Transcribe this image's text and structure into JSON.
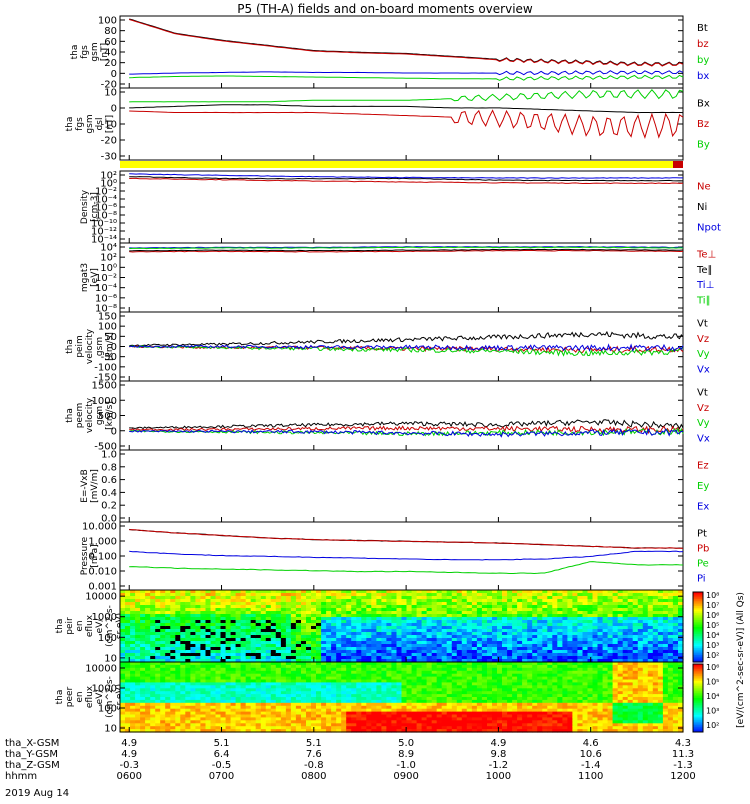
{
  "title": "P5 (TH-A) fields and on-board moments overview",
  "date_label": "2019 Aug 14",
  "colors": {
    "black": "#000000",
    "red": "#c80000",
    "green": "#00d000",
    "blue": "#0000e0",
    "lime": "#00e000",
    "yellow": "#ffff00"
  },
  "ephemeris": {
    "rows": [
      {
        "label": "tha_X-GSM",
        "values": [
          "4.9",
          "5.1",
          "5.1",
          "5.0",
          "4.9",
          "4.6",
          "4.3"
        ]
      },
      {
        "label": "tha_Y-GSM",
        "values": [
          "4.9",
          "6.4",
          "7.6",
          "8.9",
          "9.8",
          "10.6",
          "11.3"
        ]
      },
      {
        "label": "tha_Z-GSM",
        "values": [
          "-0.3",
          "-0.5",
          "-0.8",
          "-1.0",
          "-1.2",
          "-1.4",
          "-1.3"
        ]
      },
      {
        "label": "hhmm",
        "values": [
          "0600",
          "0700",
          "0800",
          "0900",
          "1000",
          "1100",
          "1200"
        ]
      }
    ]
  },
  "colorbar": {
    "label": "[eV/(cm^2-sec-sr-eV)] (All Qs)",
    "upper_ticks": [
      "10⁸",
      "10⁷",
      "10⁶",
      "10⁵",
      "10⁴",
      "10³",
      "10²"
    ],
    "lower_ticks": [
      "10⁶",
      "10⁵",
      "10⁴",
      "10³",
      "10²"
    ]
  },
  "chart_data": [
    {
      "type": "line",
      "panel": "fgs_gsm",
      "ylabel": [
        "tha",
        "fgs",
        "gsm",
        "[nT]"
      ],
      "yticks": [
        "100",
        "80",
        "60",
        "40",
        "20",
        "0",
        "-20"
      ],
      "ylim": [
        -20,
        105
      ],
      "legend": [
        {
          "name": "Bt",
          "color": "#000000"
        },
        {
          "name": "bz",
          "color": "#c80000"
        },
        {
          "name": "by",
          "color": "#00d000"
        },
        {
          "name": "bx",
          "color": "#0000e0"
        }
      ],
      "x": [
        6.0,
        6.5,
        7.0,
        7.5,
        8.0,
        8.5,
        9.0,
        9.5,
        10.0,
        10.5,
        11.0,
        11.5,
        12.0
      ],
      "series": [
        {
          "name": "Bt",
          "values": [
            100,
            75,
            63,
            54,
            45,
            42,
            40,
            35,
            30,
            27,
            25,
            22,
            22
          ]
        },
        {
          "name": "bz",
          "values": [
            99,
            74,
            62,
            53,
            44,
            41,
            39,
            34,
            29,
            26,
            24,
            21,
            21
          ]
        },
        {
          "name": "by",
          "values": [
            -2,
            0,
            1,
            0,
            -1,
            -2,
            -3,
            -4,
            -4,
            -3,
            -2,
            -1,
            -1
          ]
        },
        {
          "name": "bx",
          "values": [
            4,
            6,
            7,
            8,
            7,
            7,
            6,
            6,
            6,
            6,
            7,
            7,
            7
          ]
        }
      ]
    },
    {
      "type": "line",
      "panel": "fgs_dsl",
      "ylabel": [
        "tha",
        "fgs",
        "gsm",
        "dsl",
        "[nT]"
      ],
      "yticks": [
        "10",
        "0",
        "-10",
        "-20",
        "-30"
      ],
      "ylim": [
        -37,
        10
      ],
      "legend": [
        {
          "name": "Bx",
          "color": "#000000"
        },
        {
          "name": "Bz",
          "color": "#c80000"
        },
        {
          "name": "By",
          "color": "#00d000"
        }
      ],
      "x": [
        6.0,
        6.5,
        7.0,
        7.5,
        8.0,
        8.5,
        9.0,
        9.5,
        10.0,
        10.5,
        11.0,
        11.5,
        12.0
      ],
      "series": [
        {
          "name": "Bx",
          "values": [
            -3,
            -2,
            -1,
            -1,
            -2,
            -2,
            -2,
            -3,
            -3,
            -4,
            -5,
            -6,
            -6
          ]
        },
        {
          "name": "Bz",
          "values": [
            -5,
            -6,
            -6,
            -6,
            -6,
            -7,
            -8,
            -9,
            -10,
            -12,
            -15,
            -15,
            -14
          ]
        },
        {
          "name": "By",
          "values": [
            1,
            1,
            1,
            1,
            2,
            2,
            2,
            3,
            4,
            5,
            6,
            6,
            6
          ]
        }
      ]
    },
    {
      "type": "line",
      "panel": "density",
      "ylabel": [
        "Density",
        "[cm-3]"
      ],
      "yticks": [
        "10²",
        "10⁰",
        "10⁻²",
        "10⁻⁴",
        "10⁻⁶",
        "10⁻⁸",
        "10⁻¹⁰",
        "10⁻¹²",
        "10⁻¹⁴"
      ],
      "ylim": [
        -14,
        2.5
      ],
      "log": true,
      "legend": [
        {
          "name": "Ne",
          "color": "#c80000"
        },
        {
          "name": "Ni",
          "color": "#000000"
        },
        {
          "name": "Npot",
          "color": "#0000e0"
        }
      ],
      "x": [
        6.0,
        7.0,
        8.0,
        9.0,
        10.0,
        11.0,
        12.0
      ],
      "series": [
        {
          "name": "Ne",
          "values": [
            0.8,
            0.5,
            0.2,
            0.0,
            -0.2,
            -0.3,
            -0.3
          ]
        },
        {
          "name": "Ni",
          "values": [
            1.2,
            0.8,
            0.7,
            0.8,
            0.4,
            0.3,
            0.3
          ]
        },
        {
          "name": "Npot",
          "values": [
            1.8,
            1.5,
            1.2,
            1.0,
            0.9,
            0.9,
            0.9
          ]
        }
      ]
    },
    {
      "type": "line",
      "panel": "temperature",
      "ylabel": [
        "mgat3",
        "[eV]"
      ],
      "yticks": [
        "10⁴",
        "10²",
        "10⁰",
        "10⁻²",
        "10⁻⁴",
        "10⁻⁶",
        "10⁻⁸"
      ],
      "ylim": [
        -8,
        4.5
      ],
      "log": true,
      "legend": [
        {
          "name": "Te⊥",
          "color": "#c80000"
        },
        {
          "name": "Te∥",
          "color": "#000000"
        },
        {
          "name": "Ti⊥",
          "color": "#0000e0"
        },
        {
          "name": "Ti∥",
          "color": "#00d000"
        }
      ],
      "x": [
        6.0,
        7.0,
        8.0,
        9.0,
        10.0,
        11.0,
        12.0
      ],
      "series": [
        {
          "name": "Te⊥",
          "values": [
            2.9,
            3.0,
            2.9,
            3.0,
            3.1,
            3.1,
            3.0
          ]
        },
        {
          "name": "Te∥",
          "values": [
            3.1,
            3.2,
            3.1,
            3.2,
            3.3,
            3.3,
            3.2
          ]
        },
        {
          "name": "Ti⊥",
          "values": [
            3.6,
            3.7,
            3.7,
            3.8,
            3.8,
            3.8,
            3.7
          ]
        },
        {
          "name": "Ti∥",
          "values": [
            3.5,
            3.6,
            3.6,
            3.7,
            3.7,
            3.7,
            3.6
          ]
        }
      ]
    },
    {
      "type": "line",
      "panel": "peim_velocity",
      "ylabel": [
        "tha",
        "peim",
        "velocity",
        "gsm",
        "[km/s]"
      ],
      "yticks": [
        "150",
        "100",
        "50",
        "0",
        "-50",
        "-100",
        "-150"
      ],
      "ylim": [
        -150,
        150
      ],
      "legend": [
        {
          "name": "Vt",
          "color": "#000000"
        },
        {
          "name": "Vz",
          "color": "#c80000"
        },
        {
          "name": "Vy",
          "color": "#00d000"
        },
        {
          "name": "Vx",
          "color": "#0000e0"
        }
      ],
      "x": [
        6.0,
        7.0,
        8.0,
        9.0,
        10.0,
        11.0,
        12.0
      ],
      "series": [
        {
          "name": "Vt",
          "values": [
            5,
            10,
            20,
            30,
            40,
            55,
            40
          ]
        },
        {
          "name": "Vz",
          "values": [
            0,
            -5,
            -5,
            -10,
            -10,
            -15,
            -10
          ]
        },
        {
          "name": "Vy",
          "values": [
            0,
            -5,
            -10,
            -15,
            -20,
            -30,
            -20
          ]
        },
        {
          "name": "Vx",
          "values": [
            0,
            0,
            -2,
            -3,
            -5,
            -5,
            -5
          ]
        }
      ]
    },
    {
      "type": "line",
      "panel": "peem_velocity",
      "ylabel": [
        "tha",
        "peem",
        "velocity",
        "gsm",
        "[km/s]"
      ],
      "yticks": [
        "1500",
        "1000",
        "500",
        "0",
        "-500"
      ],
      "ylim": [
        -600,
        1600
      ],
      "legend": [
        {
          "name": "Vt",
          "color": "#000000"
        },
        {
          "name": "Vz",
          "color": "#c80000"
        },
        {
          "name": "Vy",
          "color": "#00d000"
        },
        {
          "name": "Vx",
          "color": "#0000e0"
        }
      ],
      "x": [
        6.0,
        7.0,
        8.0,
        9.0,
        10.0,
        11.0,
        12.0
      ],
      "series": [
        {
          "name": "Vt",
          "values": [
            100,
            150,
            200,
            250,
            200,
            300,
            150
          ]
        },
        {
          "name": "Vz",
          "values": [
            50,
            60,
            80,
            100,
            80,
            60,
            50
          ]
        },
        {
          "name": "Vy",
          "values": [
            0,
            -20,
            -50,
            -80,
            -50,
            -30,
            -20
          ]
        },
        {
          "name": "Vx",
          "values": [
            0,
            -10,
            -20,
            -60,
            -100,
            -50,
            -30
          ]
        }
      ]
    },
    {
      "type": "line",
      "panel": "efield",
      "ylabel": [
        "E=-VxB",
        "[mV/m]"
      ],
      "yticks": [
        "1.0",
        "0.8",
        "0.6",
        "0.4",
        "0.2",
        "0.0"
      ],
      "ylim": [
        0,
        1.05
      ],
      "legend": [
        {
          "name": "Ez",
          "color": "#c80000"
        },
        {
          "name": "Ey",
          "color": "#00d000"
        },
        {
          "name": "Ex",
          "color": "#0000e0"
        }
      ],
      "x": [],
      "series": []
    },
    {
      "type": "line",
      "panel": "pressure",
      "ylabel": [
        "Pressure",
        "[nPa]"
      ],
      "yticks": [
        "10.000",
        "1.000",
        "0.100",
        "0.010",
        "0.001"
      ],
      "ylim": [
        -3,
        1.05
      ],
      "log": true,
      "legend": [
        {
          "name": "Pt",
          "color": "#000000"
        },
        {
          "name": "Pb",
          "color": "#c80000"
        },
        {
          "name": "Pe",
          "color": "#00d000"
        },
        {
          "name": "Pi",
          "color": "#0000e0"
        }
      ],
      "x": [
        6.0,
        6.5,
        7.0,
        7.5,
        8.0,
        8.5,
        9.0,
        9.5,
        10.0,
        10.5,
        11.0,
        11.5,
        12.0
      ],
      "series": [
        {
          "name": "Pt",
          "values": [
            0.6,
            0.4,
            0.25,
            0.1,
            0.0,
            -0.05,
            -0.1,
            -0.15,
            -0.2,
            -0.3,
            -0.4,
            -0.5,
            -0.5
          ]
        },
        {
          "name": "Pb",
          "values": [
            0.6,
            0.4,
            0.25,
            0.1,
            0.0,
            -0.05,
            -0.1,
            -0.15,
            -0.2,
            -0.3,
            -0.4,
            -0.5,
            -0.5
          ]
        },
        {
          "name": "Pi",
          "values": [
            -0.7,
            -0.85,
            -0.95,
            -1.0,
            -1.05,
            -1.1,
            -1.15,
            -1.2,
            -1.2,
            -1.15,
            -1.0,
            -0.7,
            -0.7
          ]
        },
        {
          "name": "Pe",
          "values": [
            -1.6,
            -1.7,
            -1.75,
            -1.8,
            -1.85,
            -1.9,
            -1.9,
            -1.95,
            -2.0,
            -2.0,
            -1.3,
            -1.5,
            -1.5
          ]
        }
      ]
    },
    {
      "type": "heatmap",
      "panel": "peir_eflux",
      "ylabel": [
        "tha",
        "peir",
        "en",
        "eflux",
        "eV/",
        "(cm^2-s-",
        "sr-eV)"
      ],
      "yticks": [
        "10000",
        "1000",
        "100",
        "10"
      ],
      "ylim_log": [
        0.8,
        4.3
      ]
    },
    {
      "type": "heatmap",
      "panel": "peer_eflux",
      "ylabel": [
        "tha",
        "peer",
        "en",
        "eflux",
        "eV/",
        "(cm^2-s-",
        "sr-eV)"
      ],
      "yticks": [
        "10000",
        "1000",
        "100",
        "10"
      ],
      "ylim_log": [
        0.8,
        4.3
      ]
    }
  ]
}
